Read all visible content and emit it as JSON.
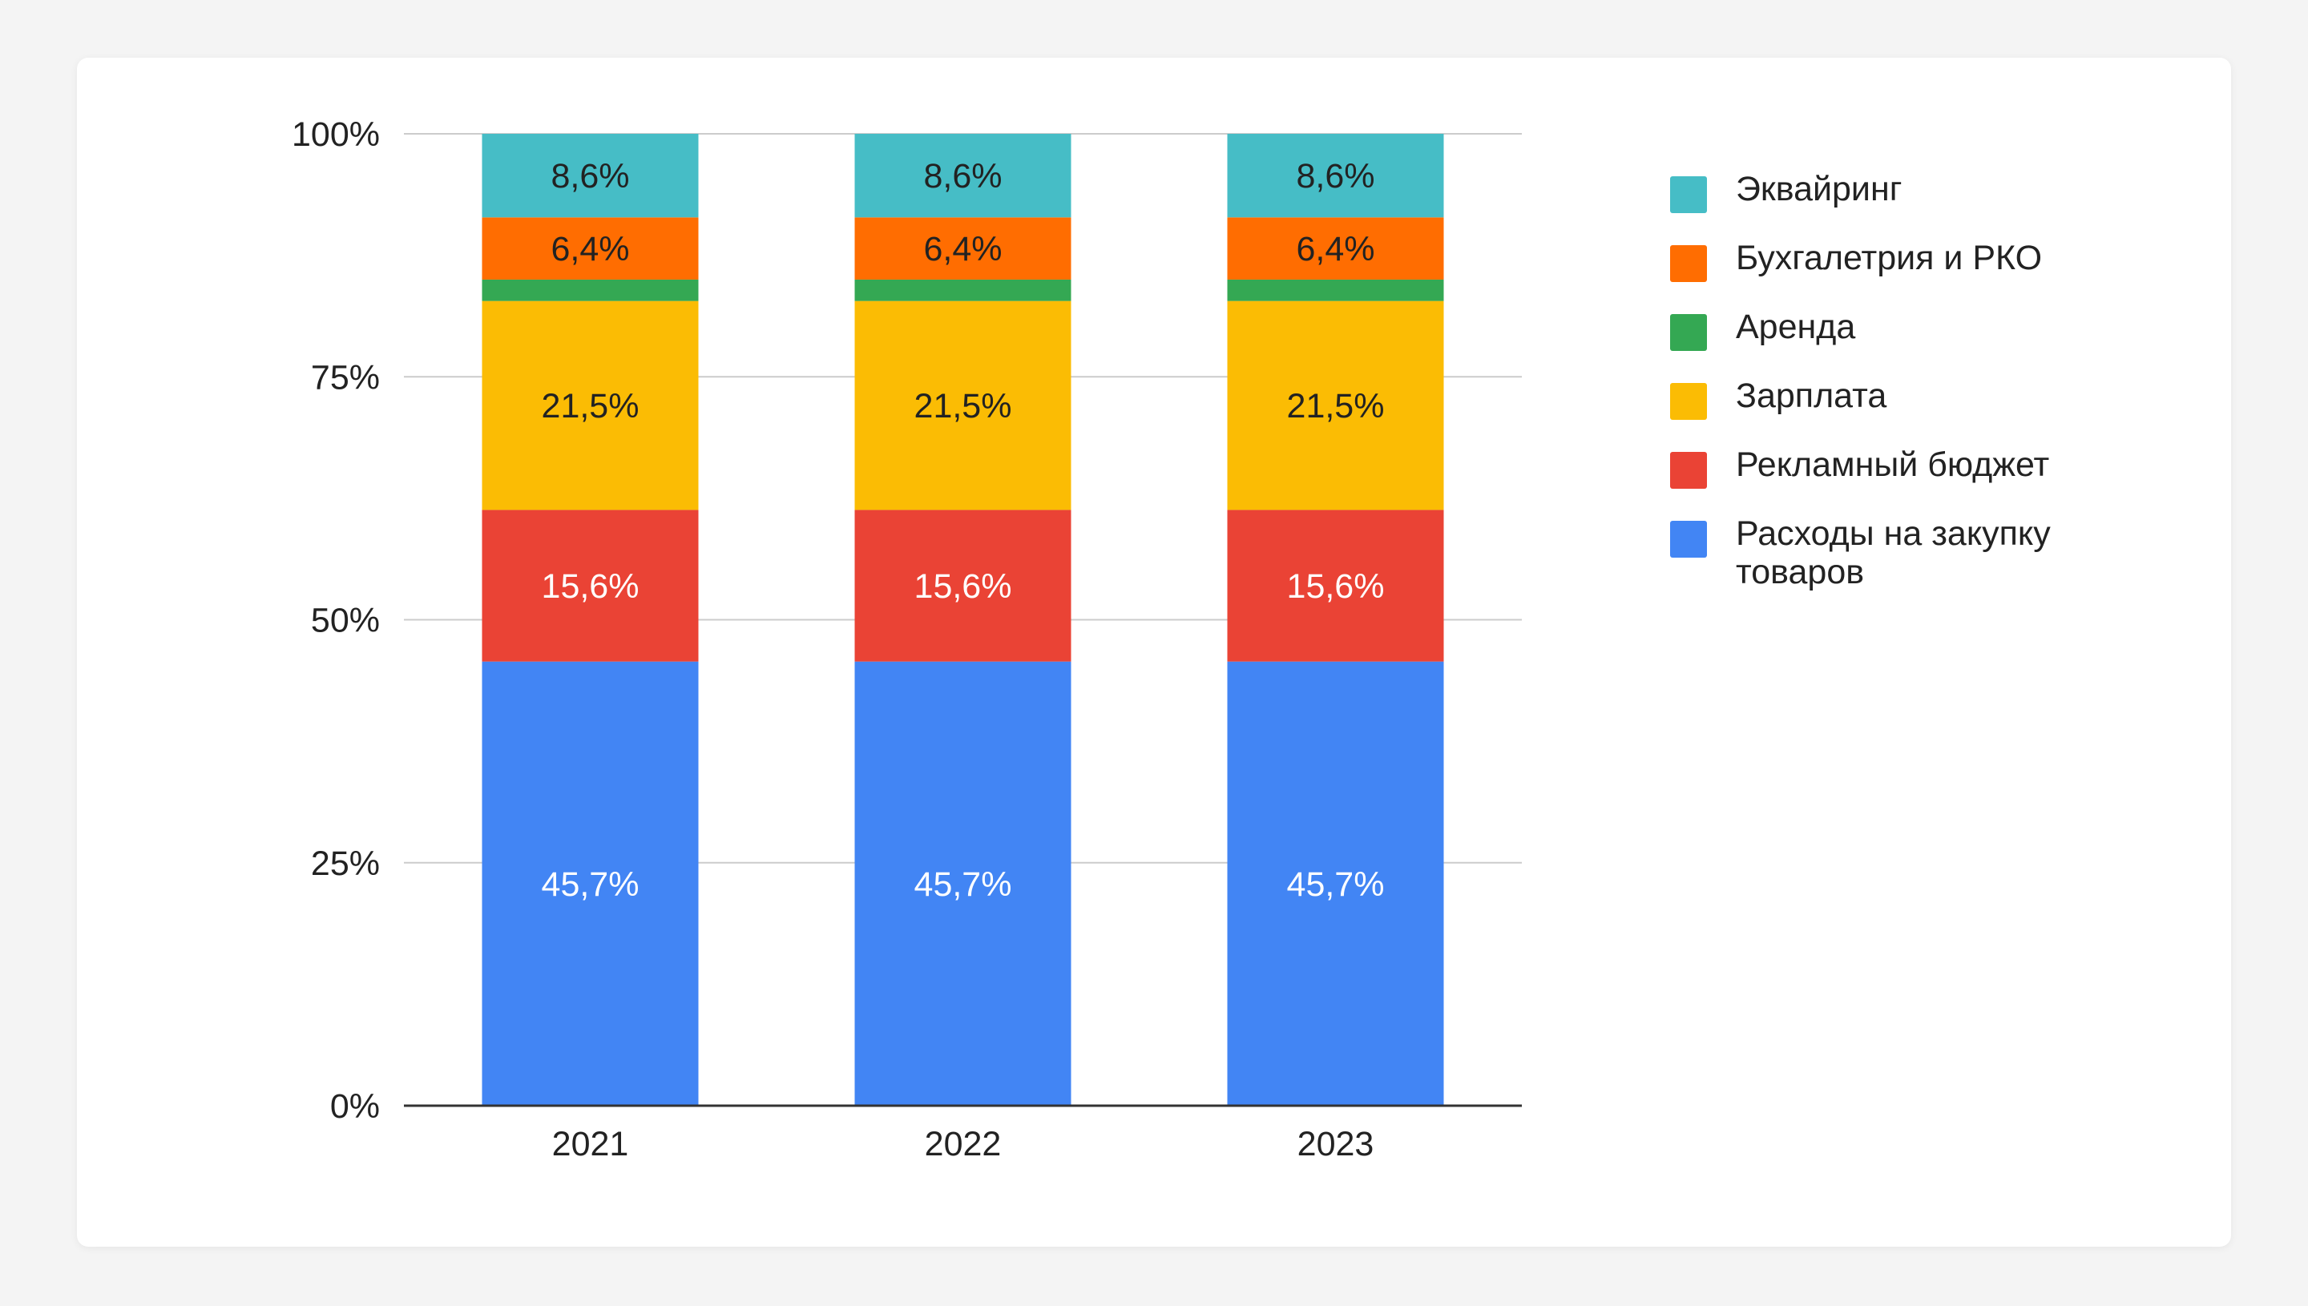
{
  "chart_data": {
    "type": "bar",
    "stacked": true,
    "percent": true,
    "categories": [
      "2021",
      "2022",
      "2023"
    ],
    "ylim": [
      0,
      100
    ],
    "y_ticks": [
      "0%",
      "25%",
      "50%",
      "75%",
      "100%"
    ],
    "y_tick_values": [
      0,
      25,
      50,
      75,
      100
    ],
    "grid": true,
    "legend_position": "right",
    "series": [
      {
        "name": "Расходы на закупку товаров",
        "color": "#4285F4",
        "values": [
          45.7,
          45.7,
          45.7
        ],
        "labels": [
          "45,7%",
          "45,7%",
          "45,7%"
        ],
        "label_color": "#ffffff"
      },
      {
        "name": "Рекламный бюджет",
        "color": "#EA4335",
        "values": [
          15.6,
          15.6,
          15.6
        ],
        "labels": [
          "15,6%",
          "15,6%",
          "15,6%"
        ],
        "label_color": "#ffffff"
      },
      {
        "name": "Зарплата",
        "color": "#FBBC04",
        "values": [
          21.5,
          21.5,
          21.5
        ],
        "labels": [
          "21,5%",
          "21,5%",
          "21,5%"
        ],
        "label_color": "#222222"
      },
      {
        "name": "Аренда",
        "color": "#34A853",
        "values": [
          2.2,
          2.2,
          2.2
        ],
        "labels": [
          "",
          "",
          ""
        ],
        "label_color": "#222222"
      },
      {
        "name": "Бухгалетрия и РКО",
        "color": "#FF6D01",
        "values": [
          6.4,
          6.4,
          6.4
        ],
        "labels": [
          "6,4%",
          "6,4%",
          "6,4%"
        ],
        "label_color": "#222222"
      },
      {
        "name": "Эквайринг",
        "color": "#46BDC6",
        "values": [
          8.6,
          8.6,
          8.6
        ],
        "labels": [
          "8,6%",
          "8,6%",
          "8,6%"
        ],
        "label_color": "#222222"
      }
    ],
    "legend_order": [
      5,
      4,
      3,
      2,
      1,
      0
    ]
  }
}
